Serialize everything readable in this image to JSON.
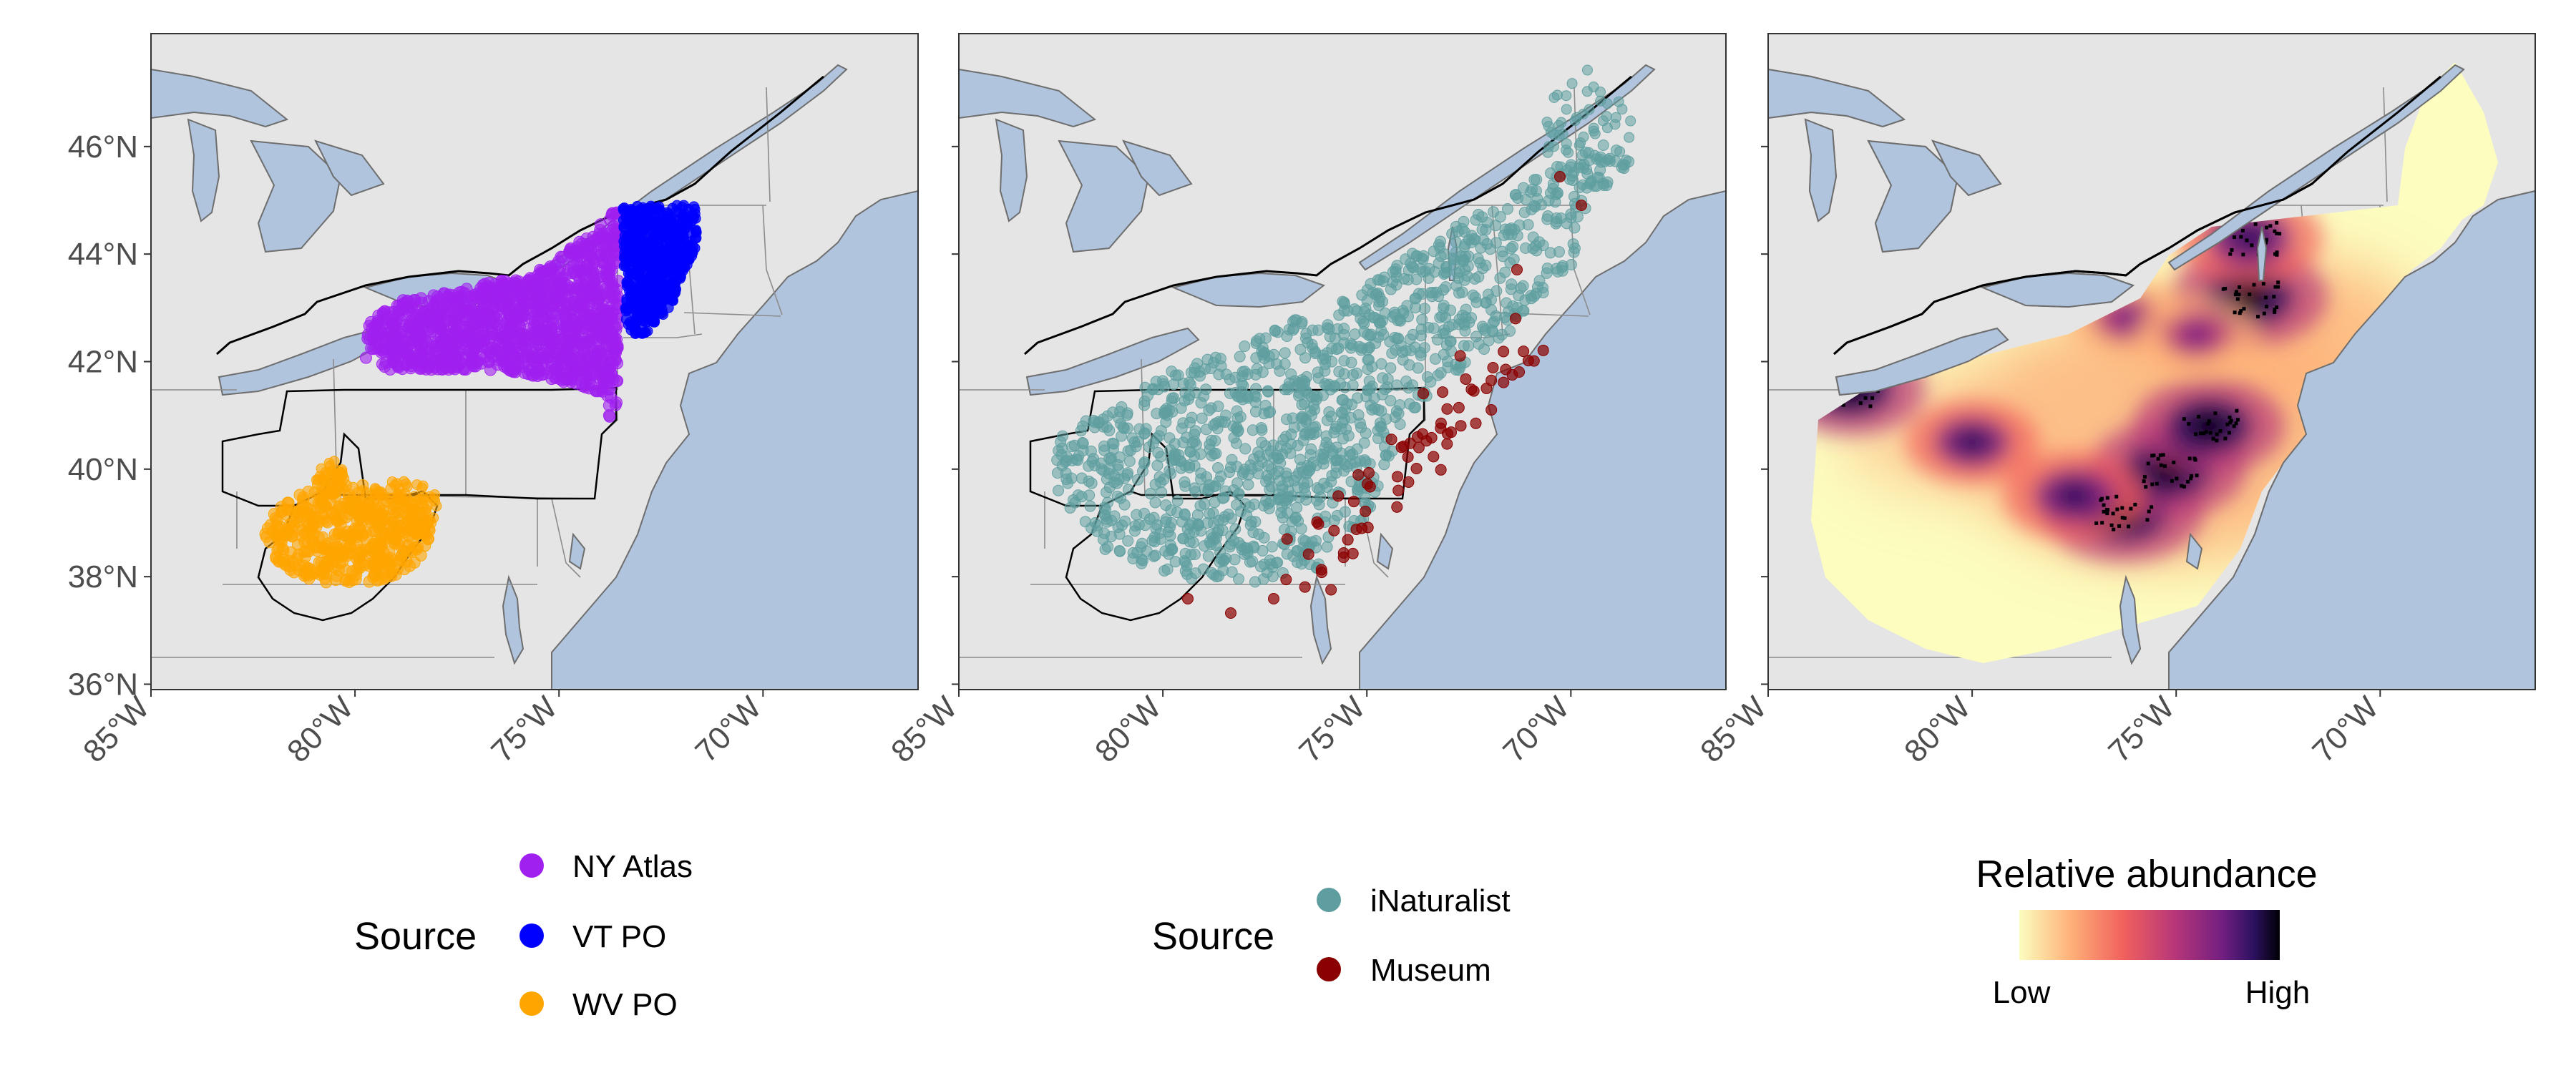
{
  "figure": {
    "x_ticks": [
      "85°W",
      "80°W",
      "75°W",
      "70°W"
    ],
    "y_ticks": [
      "36°N",
      "38°N",
      "40°N",
      "42°N",
      "44°N",
      "46°N"
    ]
  },
  "colors": {
    "land": "#e5e5e5",
    "water": "#b0c4de",
    "ny_atlas": "#a020f0",
    "vt_po": "#0000ff",
    "wv_po": "#ffa500",
    "inaturalist": "#5f9ea0",
    "museum": "#8b0000",
    "abundance_gradient": [
      "#fcfdbf",
      "#feb078",
      "#f1605d",
      "#b63679",
      "#721f81",
      "#2c115f",
      "#000004"
    ]
  },
  "panels": [
    {
      "id": "structured",
      "legend": {
        "title": "Source",
        "entries": [
          {
            "label": "NY Atlas",
            "color": "#a020f0"
          },
          {
            "label": "VT PO",
            "color": "#0000ff"
          },
          {
            "label": "WV PO",
            "color": "#ffa500"
          }
        ]
      }
    },
    {
      "id": "opportunistic",
      "legend": {
        "title": "Source",
        "entries": [
          {
            "label": "iNaturalist",
            "color": "#5f9ea0"
          },
          {
            "label": "Museum",
            "color": "#8b0000"
          }
        ]
      }
    },
    {
      "id": "abundance",
      "legend": {
        "title": "Relative abundance",
        "low": "Low",
        "high": "High"
      }
    }
  ],
  "chart_data": [
    {
      "type": "scatter",
      "map": "northeastern United States",
      "xlim": [
        -85,
        -66.2
      ],
      "ylim": [
        35.9,
        48.1
      ],
      "x_ticks": [
        -85,
        -80,
        -75,
        -70
      ],
      "y_ticks": [
        36,
        38,
        40,
        42,
        44,
        46
      ],
      "series": [
        {
          "name": "NY Atlas",
          "region": {
            "lon": [
              -79.8,
              -73.6
            ],
            "lat": [
              40.7,
              45.0
            ]
          }
        },
        {
          "name": "VT PO",
          "region": {
            "lon": [
              -73.4,
              -71.5
            ],
            "lat": [
              42.7,
              45.0
            ]
          }
        },
        {
          "name": "WV PO",
          "region": {
            "lon": [
              -82.5,
              -77.8
            ],
            "lat": [
              37.3,
              40.6
            ]
          }
        }
      ]
    },
    {
      "type": "scatter",
      "map": "northeastern United States",
      "xlim": [
        -85,
        -66.2
      ],
      "ylim": [
        35.9,
        48.1
      ],
      "x_ticks": [
        -85,
        -80,
        -75,
        -70
      ],
      "y_ticks": [
        36,
        38,
        40,
        42,
        44,
        46
      ],
      "series": [
        {
          "name": "iNaturalist",
          "region": {
            "lon": [
              -82.8,
              -68.7
            ],
            "lat": [
              37.8,
              47.2
            ]
          }
        },
        {
          "name": "Museum",
          "region": {
            "lon": [
              -80.0,
              -70.0
            ],
            "lat": [
              37.5,
              45.0
            ]
          }
        }
      ]
    },
    {
      "type": "heatmap",
      "map": "northeastern United States",
      "xlim": [
        -85,
        -66.2
      ],
      "ylim": [
        35.9,
        48.1
      ],
      "x_ticks": [
        -85,
        -80,
        -75,
        -70
      ],
      "y_ticks": [
        36,
        38,
        40,
        42,
        44,
        46
      ],
      "scale": {
        "low": "Low",
        "high": "High"
      },
      "hotspots": [
        {
          "lon": -76.3,
          "lat": 39.2,
          "level": 1.0
        },
        {
          "lon": -75.2,
          "lat": 40.0,
          "level": 0.95
        },
        {
          "lon": -74.2,
          "lat": 40.8,
          "level": 0.9
        },
        {
          "lon": -73.2,
          "lat": 43.2,
          "level": 0.95
        },
        {
          "lon": -73.2,
          "lat": 44.3,
          "level": 0.85
        },
        {
          "lon": -83.0,
          "lat": 41.5,
          "level": 0.9
        },
        {
          "lon": -80.0,
          "lat": 40.5,
          "level": 0.7
        },
        {
          "lon": -77.5,
          "lat": 39.5,
          "level": 0.8
        },
        {
          "lon": -76.2,
          "lat": 42.8,
          "level": 0.6
        },
        {
          "lon": -74.5,
          "lat": 42.5,
          "level": 0.6
        }
      ]
    }
  ]
}
